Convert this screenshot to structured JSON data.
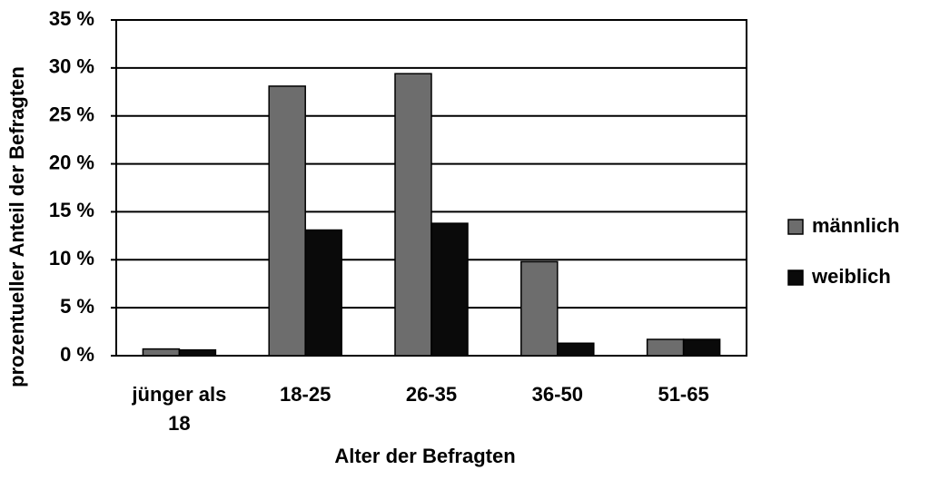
{
  "chart_data": {
    "type": "bar",
    "x_label": "Alter der Befragten",
    "y_label": "prozentueller Anteil der Befragten",
    "categories": [
      "jünger als 18",
      "18-25",
      "26-35",
      "36-50",
      "51-65"
    ],
    "series": [
      {
        "name": "männlich",
        "color": "#6d6d6d",
        "values": [
          0.7,
          28.1,
          29.4,
          9.8,
          1.7
        ]
      },
      {
        "name": "weiblich",
        "color": "#0a0a0a",
        "values": [
          0.6,
          13.1,
          13.8,
          1.3,
          1.7
        ]
      }
    ],
    "ylim": [
      0,
      35
    ],
    "yticks": [
      {
        "value": 0,
        "label": "0 %"
      },
      {
        "value": 5,
        "label": "5 %"
      },
      {
        "value": 10,
        "label": "10 %"
      },
      {
        "value": 15,
        "label": "15 %"
      },
      {
        "value": 20,
        "label": "20 %"
      },
      {
        "value": 25,
        "label": "25 %"
      },
      {
        "value": 30,
        "label": "30 %"
      },
      {
        "value": 35,
        "label": "35 %"
      }
    ],
    "grid": true,
    "legend": "right"
  }
}
